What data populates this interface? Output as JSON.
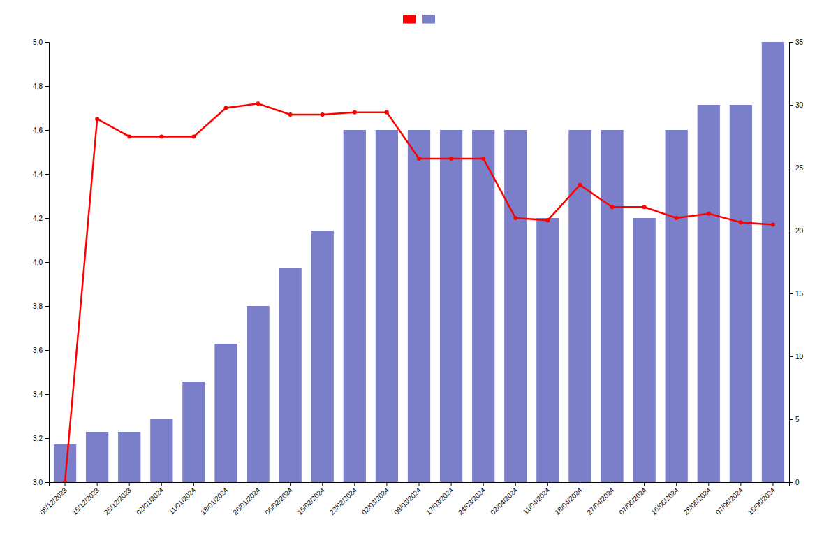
{
  "chart_data": {
    "type": "bar",
    "categories": [
      "08/12/2023",
      "15/12/2023",
      "25/12/2023",
      "02/01/2024",
      "11/01/2024",
      "18/01/2024",
      "26/01/2024",
      "06/02/2024",
      "15/02/2024",
      "23/02/2024",
      "02/03/2024",
      "09/03/2024",
      "17/03/2024",
      "24/03/2024",
      "02/04/2024",
      "11/04/2024",
      "18/04/2024",
      "27/04/2024",
      "07/05/2024",
      "16/05/2024",
      "28/05/2024",
      "07/06/2024",
      "15/06/2024"
    ],
    "series": [
      {
        "type": "line",
        "color": "#ff0000",
        "marker": "circle",
        "values": [
          3.0,
          4.65,
          4.57,
          4.57,
          4.57,
          4.7,
          4.72,
          4.67,
          4.67,
          4.68,
          4.68,
          4.47,
          4.47,
          4.47,
          4.2,
          4.19,
          4.35,
          4.25,
          4.25,
          4.2,
          4.22,
          4.18,
          4.17
        ]
      },
      {
        "type": "bar",
        "axis": "y2",
        "color": "#7b7ec8",
        "values": [
          3,
          4,
          4,
          5,
          8,
          11,
          14,
          17,
          20,
          28,
          28,
          28,
          28,
          28,
          28,
          21,
          28,
          28,
          21,
          28,
          30,
          30,
          35
        ]
      }
    ],
    "ylim": [
      3.0,
      5.0
    ],
    "yticks": [
      {
        "value": 3.0,
        "label": "3,0"
      },
      {
        "value": 3.2,
        "label": "3,2"
      },
      {
        "value": 3.4,
        "label": "3,4"
      },
      {
        "value": 3.6,
        "label": "3,6"
      },
      {
        "value": 3.8,
        "label": "3,8"
      },
      {
        "value": 4.0,
        "label": "4,0"
      },
      {
        "value": 4.2,
        "label": "4,2"
      },
      {
        "value": 4.4,
        "label": "4,4"
      },
      {
        "value": 4.6,
        "label": "4,6"
      },
      {
        "value": 4.8,
        "label": "4,8"
      },
      {
        "value": 5.0,
        "label": "5,0"
      }
    ],
    "y2lim": [
      0,
      35
    ],
    "y2ticks": [
      0,
      5,
      10,
      15,
      20,
      25,
      30,
      35
    ],
    "grid": false,
    "legend": "top"
  }
}
